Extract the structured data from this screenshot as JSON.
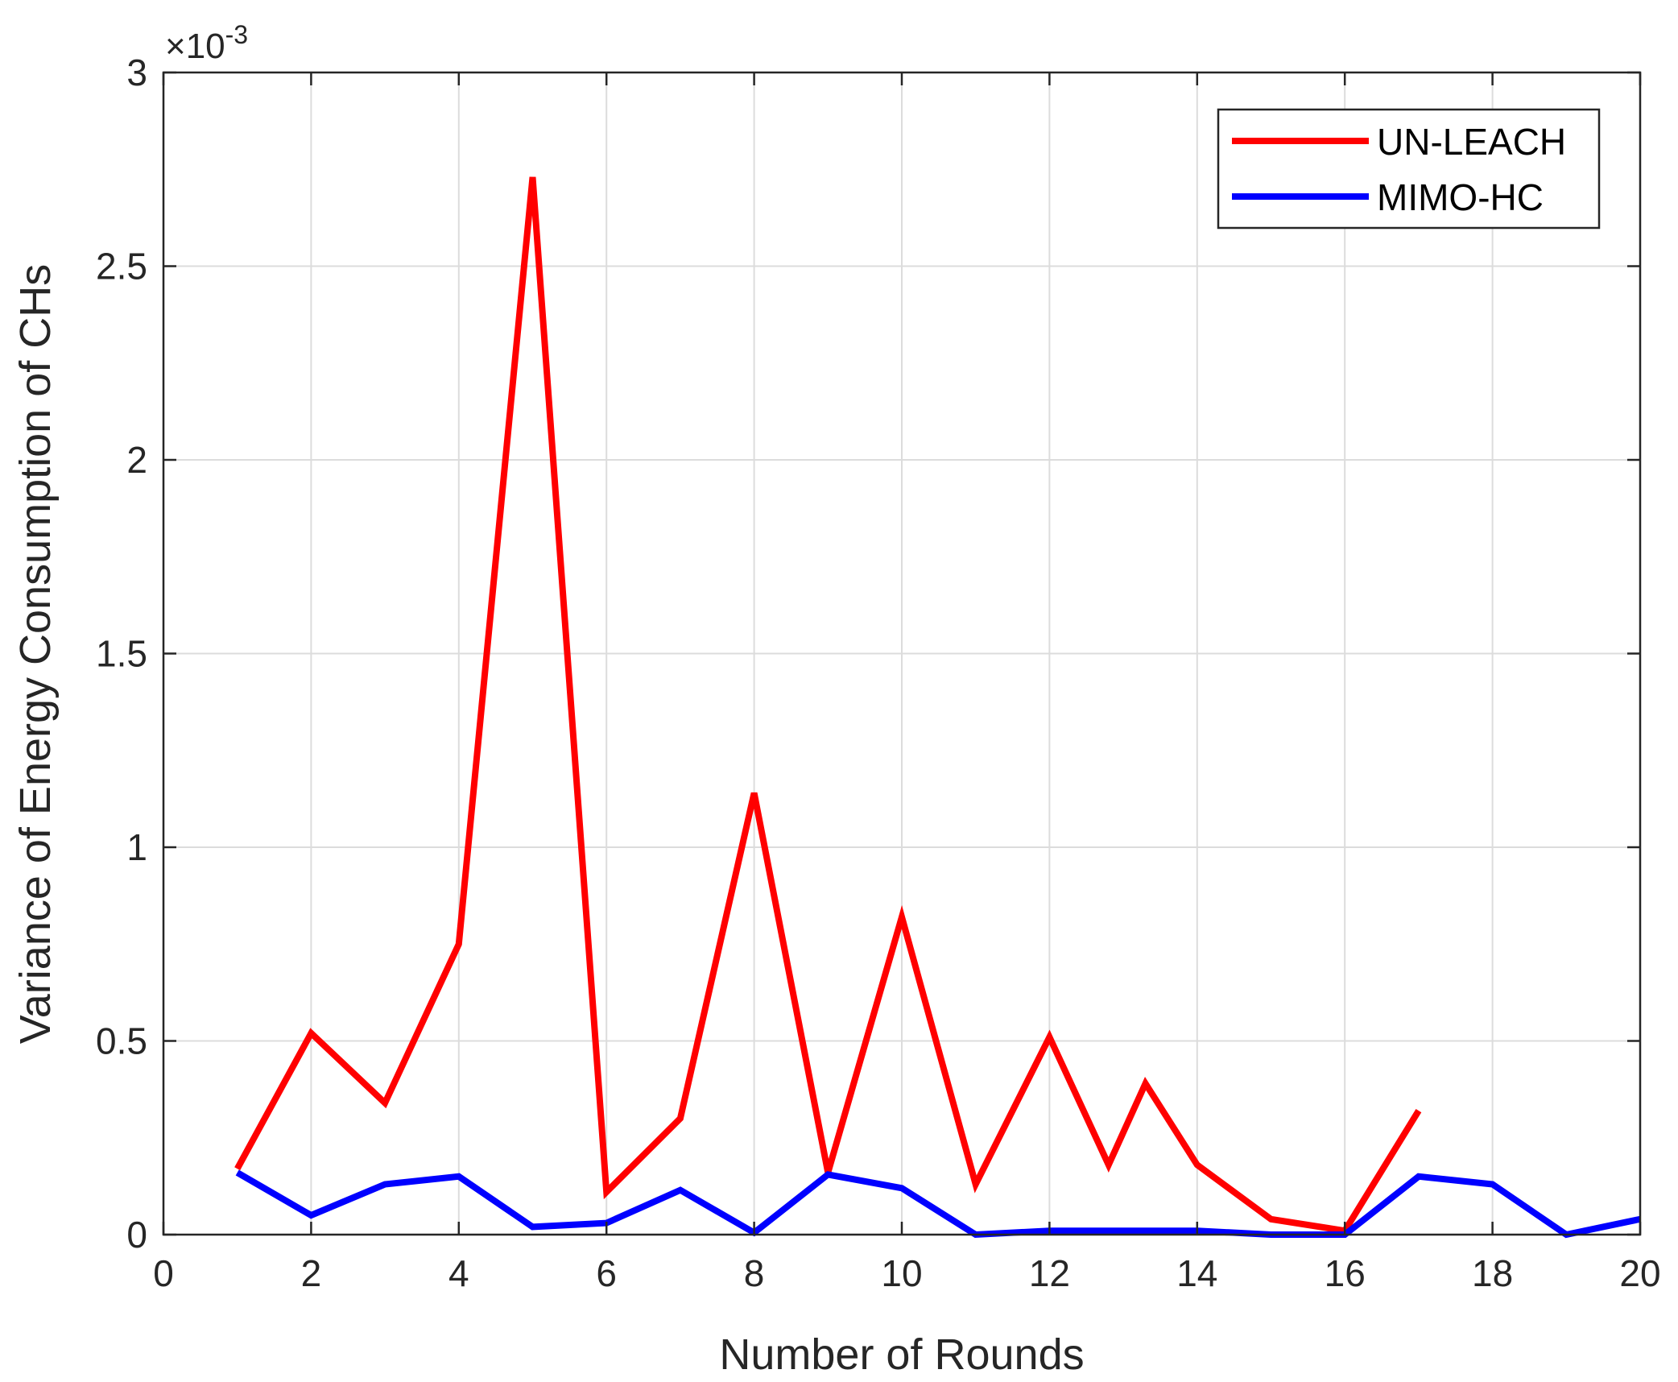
{
  "chart_data": {
    "type": "line",
    "title": "",
    "xlabel": "Number of Rounds",
    "ylabel": "Variance of Energy Consumption of CHs",
    "y_exponent_label": "×10",
    "y_exponent_power": "-3",
    "xlim": [
      0,
      20
    ],
    "ylim": [
      0,
      3
    ],
    "x_ticks": [
      "0",
      "2",
      "4",
      "6",
      "8",
      "10",
      "12",
      "14",
      "16",
      "18",
      "20"
    ],
    "y_ticks": [
      "0",
      "0.5",
      "1",
      "1.5",
      "2",
      "2.5",
      "3"
    ],
    "grid": true,
    "legend_position": "top-right",
    "series": [
      {
        "name": "UN-LEACH",
        "color": "#ff0000",
        "x": [
          1,
          2,
          3,
          4,
          5,
          6,
          7,
          8,
          9,
          10,
          11,
          12,
          12.8,
          13.3,
          14,
          15,
          16,
          17
        ],
        "y": [
          0.17,
          0.52,
          0.34,
          0.75,
          2.73,
          0.11,
          0.3,
          1.14,
          0.16,
          0.82,
          0.13,
          0.51,
          0.18,
          0.39,
          0.18,
          0.04,
          0.01,
          0.32
        ]
      },
      {
        "name": "MIMO-HC",
        "color": "#0000ff",
        "x": [
          1,
          2,
          3,
          4,
          5,
          6,
          7,
          8,
          9,
          10,
          11,
          12,
          13,
          14,
          15,
          16,
          17,
          18,
          19,
          20
        ],
        "y": [
          0.16,
          0.05,
          0.13,
          0.15,
          0.02,
          0.03,
          0.115,
          0.005,
          0.155,
          0.12,
          0.0,
          0.01,
          0.01,
          0.01,
          0.0,
          0.0,
          0.15,
          0.13,
          0.0,
          0.04
        ]
      }
    ]
  }
}
